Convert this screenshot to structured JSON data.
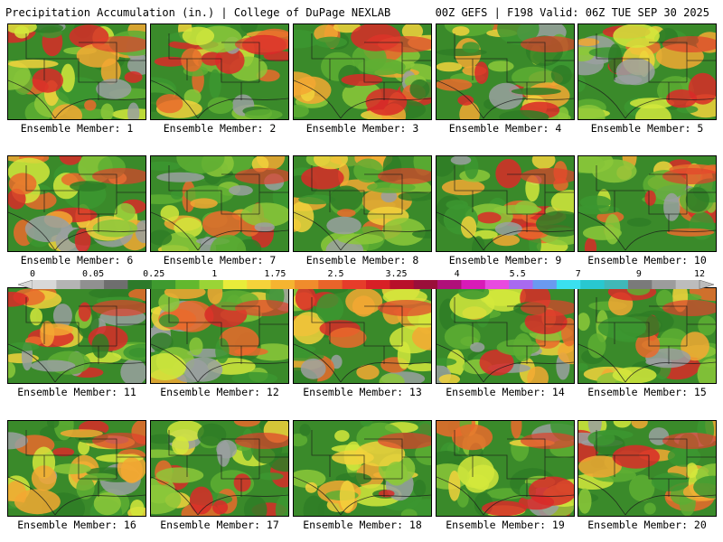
{
  "header": {
    "left_title": "Precipitation Accumulation (in.) | College of DuPage NEXLAB",
    "right_title": "00Z GEFS | F198 Valid: 06Z TUE SEP 30 2025"
  },
  "colors": {
    "scale": [
      "#d8d8d8",
      "#b4b4b4",
      "#909090",
      "#6e6e6e",
      "#2d7a2a",
      "#3f9a2f",
      "#62b82e",
      "#9ad436",
      "#e8ec3a",
      "#f5d23a",
      "#f5b430",
      "#f08c2c",
      "#e8642a",
      "#e63c2a",
      "#d81f26",
      "#b8102a",
      "#9a0f3a",
      "#b0107a",
      "#d81ab8",
      "#e84ae0",
      "#a86af0",
      "#6a9af0",
      "#3ae0f0",
      "#28c8d0",
      "#40b8b8",
      "#7a7a7a",
      "#9c9c9c",
      "#bcbcbc"
    ]
  },
  "legend": {
    "ticks": [
      "0",
      "0.05",
      "0.25",
      "1",
      "1.75",
      "2.5",
      "3.25",
      "4",
      "5.5",
      "7",
      "9",
      "12"
    ]
  },
  "members": [
    {
      "label": "Ensemble Member: 1"
    },
    {
      "label": "Ensemble Member: 2"
    },
    {
      "label": "Ensemble Member: 3"
    },
    {
      "label": "Ensemble Member: 4"
    },
    {
      "label": "Ensemble Member: 5"
    },
    {
      "label": "Ensemble Member: 6"
    },
    {
      "label": "Ensemble Member: 7"
    },
    {
      "label": "Ensemble Member: 8"
    },
    {
      "label": "Ensemble Member: 9"
    },
    {
      "label": "Ensemble Member: 10"
    },
    {
      "label": "Ensemble Member: 11"
    },
    {
      "label": "Ensemble Member: 12"
    },
    {
      "label": "Ensemble Member: 13"
    },
    {
      "label": "Ensemble Member: 14"
    },
    {
      "label": "Ensemble Member: 15"
    },
    {
      "label": "Ensemble Member: 16"
    },
    {
      "label": "Ensemble Member: 17"
    },
    {
      "label": "Ensemble Member: 18"
    },
    {
      "label": "Ensemble Member: 19"
    },
    {
      "label": "Ensemble Member: 20"
    }
  ]
}
